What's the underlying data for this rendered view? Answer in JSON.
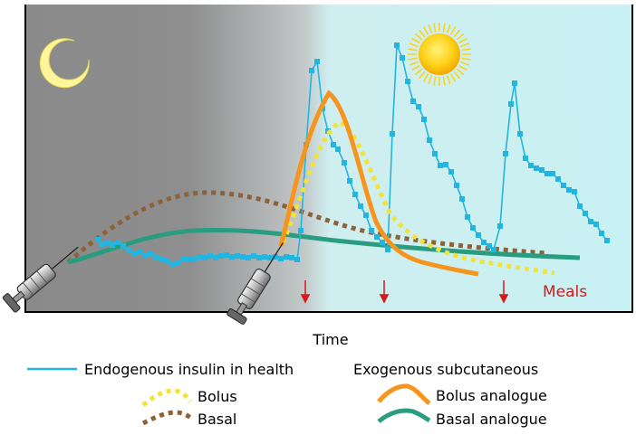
{
  "xlabel": "Time",
  "meals_label": "Meals",
  "legend": {
    "endogenous": "Endogenous insulin in health",
    "exogenous_heading": "Exogenous subcutaneous",
    "bolus": "Bolus",
    "basal": "Basal",
    "bolus_analogue": "Bolus analogue",
    "basal_analogue": "Basal analogue"
  },
  "colors": {
    "endogenous": "#22b5e0",
    "bolus": "#f2e33a",
    "basal": "#8c6239",
    "bolus_analogue": "#f7941d",
    "basal_analogue": "#2a9d80",
    "meals": "#d7191c",
    "night": "#8a8a8a",
    "day": "#c8f1f3"
  },
  "icons": [
    "moon-icon",
    "sun-icon",
    "syringe-icon",
    "meal-arrow-icon"
  ]
}
